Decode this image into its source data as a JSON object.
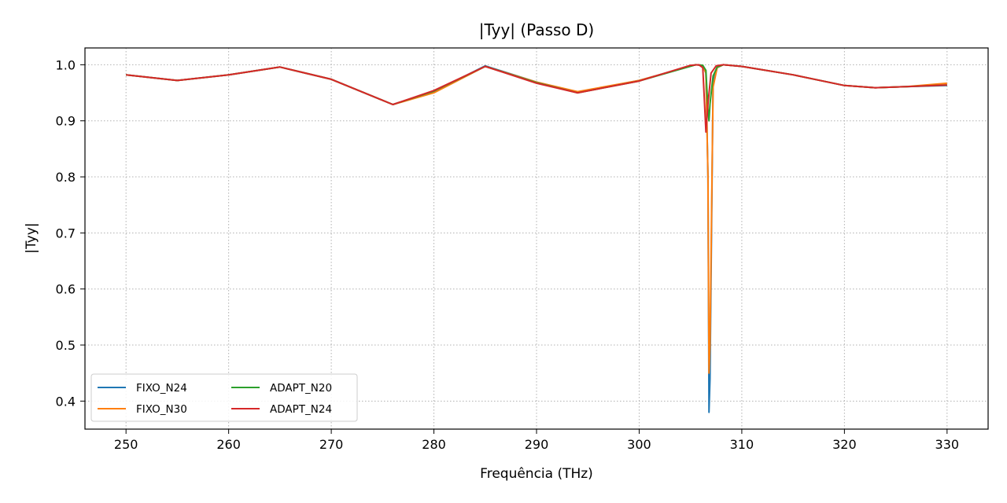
{
  "chart_data": {
    "type": "line",
    "title": "|Tyy| (Passo D)",
    "xlabel": "Frequência (THz)",
    "ylabel": "|Tyy|",
    "xlim": [
      246,
      334
    ],
    "ylim": [
      0.35,
      1.03
    ],
    "xticks": [
      250,
      260,
      270,
      280,
      290,
      300,
      310,
      320,
      330
    ],
    "yticks": [
      0.4,
      0.5,
      0.6,
      0.7,
      0.8,
      0.9,
      1.0
    ],
    "xtick_labels": [
      "250",
      "260",
      "270",
      "280",
      "290",
      "300",
      "310",
      "320",
      "330"
    ],
    "ytick_labels": [
      "0.4",
      "0.5",
      "0.6",
      "0.7",
      "0.8",
      "0.9",
      "1.0"
    ],
    "grid": true,
    "legend_position": "lower-left",
    "legend_columns": 2,
    "series": [
      {
        "name": "FIXO_N24",
        "color": "#1f77b4",
        "x": [
          250,
          255,
          260,
          265,
          270,
          276,
          280,
          285,
          290,
          294,
          300,
          305.5,
          306.2,
          306.5,
          306.7,
          306.8,
          306.9,
          307.2,
          307.6,
          308.2,
          310,
          315,
          320,
          323,
          326,
          330
        ],
        "y": [
          0.982,
          0.972,
          0.982,
          0.996,
          0.974,
          0.929,
          0.952,
          0.998,
          0.969,
          0.951,
          0.972,
          1.0,
          0.999,
          0.985,
          0.8,
          0.38,
          0.44,
          0.97,
          0.995,
          1.0,
          0.997,
          0.982,
          0.963,
          0.959,
          0.961,
          0.963
        ]
      },
      {
        "name": "FIXO_N30",
        "color": "#ff7f0e",
        "x": [
          250,
          255,
          260,
          265,
          270,
          276,
          280,
          285,
          290,
          294,
          300,
          305.5,
          306.2,
          306.5,
          306.7,
          306.8,
          306.9,
          307.2,
          307.6,
          308.2,
          310,
          315,
          320,
          323,
          326,
          330
        ],
        "y": [
          0.982,
          0.972,
          0.982,
          0.996,
          0.974,
          0.929,
          0.95,
          0.997,
          0.969,
          0.952,
          0.972,
          1.0,
          0.999,
          0.985,
          0.8,
          0.45,
          0.5,
          0.96,
          0.995,
          1.0,
          0.997,
          0.982,
          0.963,
          0.959,
          0.961,
          0.967
        ]
      },
      {
        "name": "ADAPT_N20",
        "color": "#2ca02c",
        "x": [
          250,
          255,
          260,
          265,
          270,
          276,
          280,
          285,
          290,
          294,
          300,
          305.5,
          306.2,
          306.5,
          306.7,
          306.8,
          306.9,
          307.2,
          307.6,
          308.2,
          310,
          315,
          320,
          323,
          326,
          330
        ],
        "y": [
          0.982,
          0.972,
          0.982,
          0.996,
          0.974,
          0.929,
          0.953,
          0.997,
          0.968,
          0.95,
          0.971,
          1.0,
          0.999,
          0.99,
          0.92,
          0.9,
          0.93,
          0.98,
          0.996,
          1.0,
          0.997,
          0.982,
          0.963,
          0.959,
          0.961,
          0.964
        ]
      },
      {
        "name": "ADAPT_N24",
        "color": "#d62728",
        "x": [
          250,
          255,
          260,
          265,
          270,
          276,
          280,
          285,
          290,
          294,
          300,
          305,
          305.8,
          306.2,
          306.5,
          306.7,
          307.0,
          307.5,
          308.2,
          310,
          315,
          320,
          323,
          326,
          330
        ],
        "y": [
          0.982,
          0.972,
          0.982,
          0.996,
          0.974,
          0.929,
          0.954,
          0.997,
          0.967,
          0.95,
          0.971,
          0.999,
          1.0,
          0.995,
          0.88,
          0.93,
          0.985,
          0.998,
          1.0,
          0.997,
          0.982,
          0.963,
          0.959,
          0.961,
          0.964
        ]
      }
    ]
  }
}
